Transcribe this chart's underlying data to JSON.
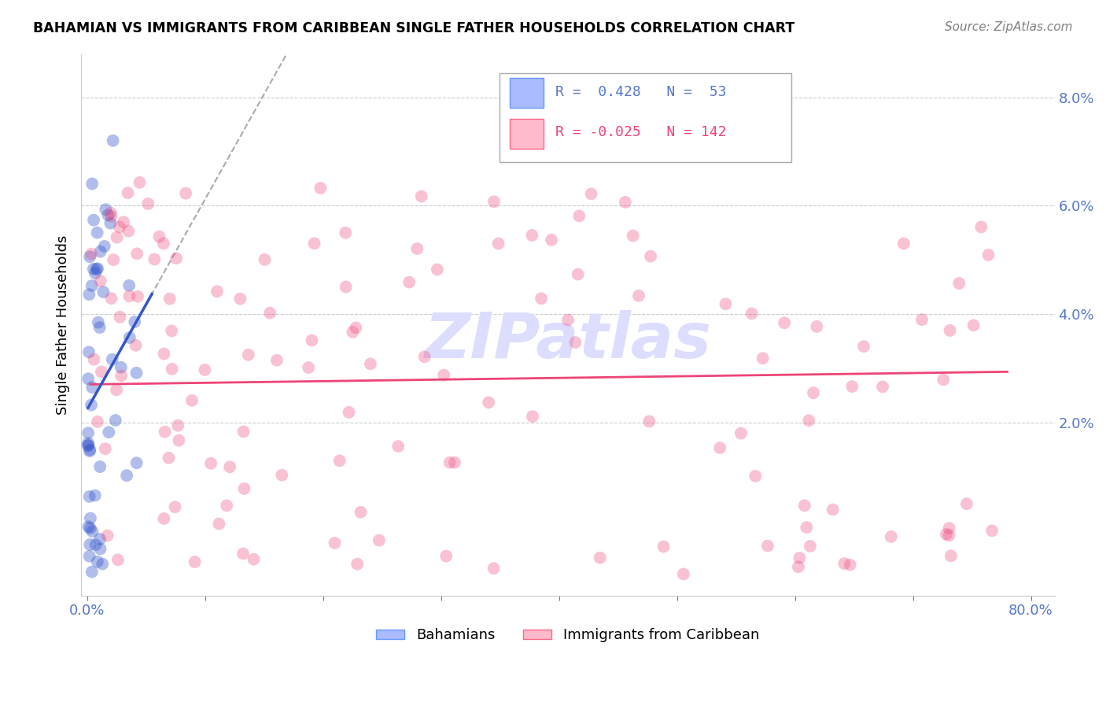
{
  "title": "BAHAMIAN VS IMMIGRANTS FROM CARIBBEAN SINGLE FATHER HOUSEHOLDS CORRELATION CHART",
  "source": "Source: ZipAtlas.com",
  "ylabel": "Single Father Households",
  "legend_labels": [
    "Bahamians",
    "Immigrants from Caribbean"
  ],
  "blue_line_color": "#3355cc",
  "pink_line_color": "#ee4477",
  "dashed_line_color": "#aaaaaa",
  "axis_color": "#5577cc",
  "grid_color": "#cccccc",
  "watermark_text": "ZIPatlas",
  "watermark_color": "#ddddff",
  "r_blue": 0.428,
  "n_blue": 53,
  "r_pink": -0.025,
  "n_pink": 142
}
